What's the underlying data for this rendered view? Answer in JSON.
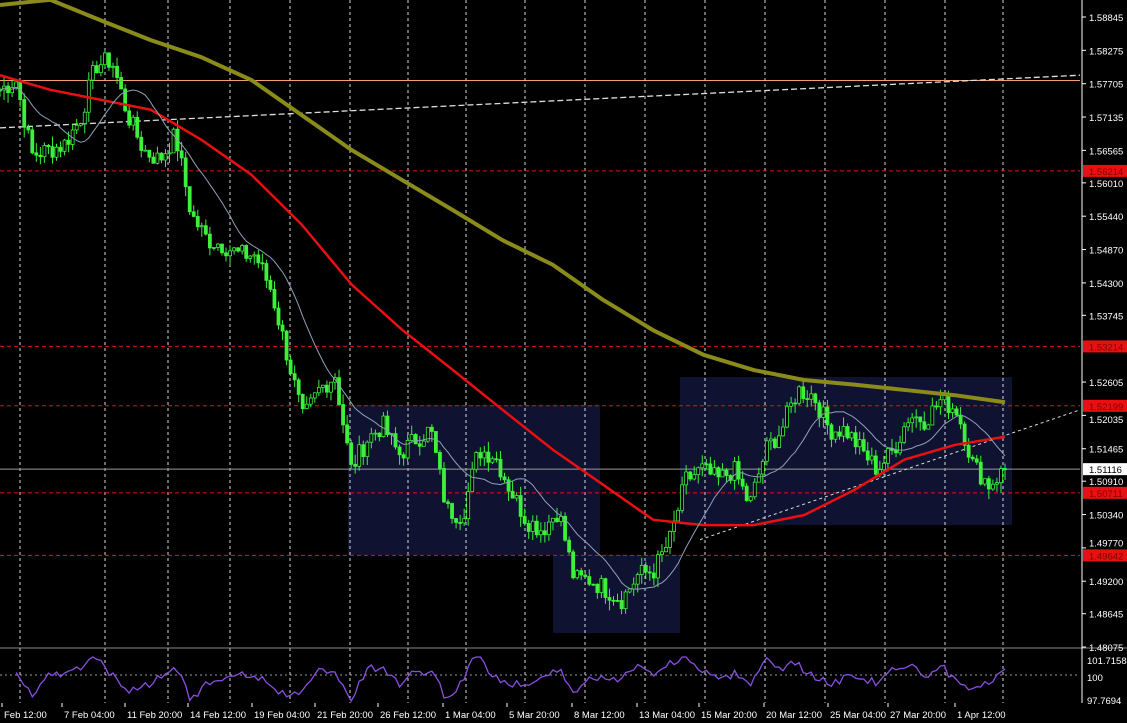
{
  "chart_data": {
    "type": "candlestick",
    "price_axis": {
      "ylim": [
        1.478,
        1.5912
      ],
      "ticks": [
        "1.58845",
        "1.58275",
        "1.57705",
        "1.57135",
        "1.56565",
        "1.56010",
        "1.55440",
        "1.54870",
        "1.54300",
        "1.53745",
        "1.52605",
        "1.52035",
        "1.51465",
        "1.50910",
        "1.50340",
        "1.49770",
        "1.49200",
        "1.48645",
        "1.48075"
      ]
    },
    "time_axis": {
      "ticks": [
        "Feb 12:00",
        "7 Feb 04:00",
        "11 Feb 20:00",
        "14 Feb 12:00",
        "19 Feb 04:00",
        "21 Feb 20:00",
        "26 Feb 12:00",
        "1 Mar 04:00",
        "5 Mar 20:00",
        "8 Mar 12:00",
        "13 Mar 04:00",
        "15 Mar 20:00",
        "20 Mar 12:00",
        "25 Mar 04:00",
        "27 Mar 20:00",
        "1 Apr 12:00"
      ]
    },
    "grid": true,
    "close_path": [
      1.576,
      1.5777,
      1.5649,
      1.5657,
      1.5666,
      1.5708,
      1.5802,
      1.5811,
      1.5717,
      1.5657,
      1.564,
      1.5683,
      1.5546,
      1.5504,
      1.5495,
      1.5478,
      1.5478,
      1.5418,
      1.5307,
      1.5196,
      1.5247,
      1.5273,
      1.5111,
      1.5162,
      1.5187,
      1.5136,
      1.5162,
      1.5179,
      1.5042,
      1.5033,
      1.5144,
      1.5136,
      1.5076,
      1.5025,
      1.5008,
      1.5042,
      1.4923,
      1.4923,
      1.4906,
      1.4889,
      1.4931,
      1.4939,
      1.4991,
      1.5093,
      1.5111,
      1.5093,
      1.5111,
      1.505,
      1.5144,
      1.5179,
      1.5247,
      1.5238,
      1.5179,
      1.5179,
      1.5144,
      1.5111,
      1.5144,
      1.5204,
      1.5196,
      1.523,
      1.5213,
      1.5119,
      1.5085,
      1.5111
    ],
    "moving_averages": [
      {
        "color": "#8b8b1a",
        "values": [
          1.5905,
          1.5914,
          1.5879,
          1.5845,
          1.5816,
          1.5777,
          1.5717,
          1.5657,
          1.5606,
          1.5555,
          1.5503,
          1.5461,
          1.5401,
          1.5349,
          1.5307,
          1.5281,
          1.5264,
          1.5256,
          1.5247,
          1.5238,
          1.5226
        ]
      },
      {
        "color": "#e81010",
        "values": [
          1.5785,
          1.576,
          1.5743,
          1.5726,
          1.5675,
          1.5615,
          1.553,
          1.5427,
          1.535,
          1.5282,
          1.5213,
          1.5145,
          1.5085,
          1.5025,
          1.5016,
          1.5016,
          1.5033,
          1.5076,
          1.5128,
          1.5153,
          1.5167
        ]
      }
    ],
    "levels": [
      {
        "price": 1.56214,
        "label": "1.56214",
        "color": "#e81010"
      },
      {
        "price": 1.53214,
        "label": "1.53214",
        "color": "#e81010"
      },
      {
        "price": 1.52199,
        "label": "1.52199",
        "color": "#e81010"
      },
      {
        "price": 1.50711,
        "label": "1.50711",
        "color": "#e81010"
      },
      {
        "price": 1.49642,
        "label": "1.49642",
        "color": "#e81010"
      }
    ],
    "current_price": {
      "price": 1.51116,
      "label": "1.51116"
    },
    "orange_level": 1.5776,
    "long_trendline": [
      1.5695,
      1.5785
    ],
    "support_trendline": [
      1.4991,
      1.5213
    ],
    "indicator": {
      "ticks": [
        "101.7158",
        "100",
        "97.7694"
      ],
      "ylim": [
        97.7694,
        101.7158
      ],
      "color": "#8a4fe0"
    },
    "colors": {
      "candles": "#3cf03c",
      "boxes": "#0f1230",
      "grid": "#ffffff"
    }
  }
}
